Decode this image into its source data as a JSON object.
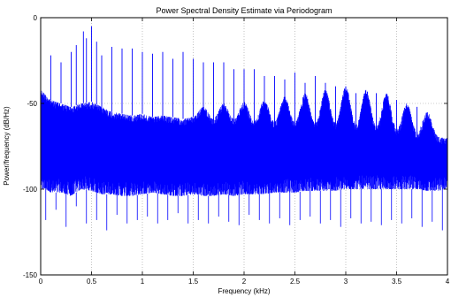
{
  "chart_data": {
    "type": "line",
    "title": "Power Spectral Density Estimate via Periodogram",
    "xlabel": "Frequency (kHz)",
    "ylabel": "Power/frequency (dB/Hz)",
    "xlim": [
      0,
      4
    ],
    "ylim": [
      -150,
      0
    ],
    "xticks": [
      "0",
      "0.5",
      "1",
      "1.5",
      "2",
      "2.5",
      "3",
      "3.5",
      "4"
    ],
    "yticks": [
      "-150",
      "-100",
      "-50",
      "0"
    ],
    "grid": true,
    "line_color": "#0000ff",
    "noise_band": {
      "x": [
        0.0,
        0.05,
        0.1,
        0.2,
        0.3,
        0.4,
        0.5,
        0.6,
        0.7,
        0.8,
        0.9,
        1.0,
        1.1,
        1.2,
        1.3,
        1.4,
        1.5,
        1.6,
        1.7,
        1.8,
        1.9,
        2.0,
        2.1,
        2.2,
        2.3,
        2.4,
        2.5,
        2.6,
        2.7,
        2.8,
        2.9,
        3.0,
        3.1,
        3.2,
        3.3,
        3.4,
        3.5,
        3.6,
        3.7,
        3.8,
        3.9,
        4.0
      ],
      "upper": [
        -42,
        -45,
        -48,
        -50,
        -52,
        -50,
        -49,
        -52,
        -55,
        -56,
        -57,
        -56,
        -58,
        -57,
        -58,
        -59,
        -58,
        -59,
        -60,
        -60,
        -61,
        -62,
        -62,
        -63,
        -63,
        -63,
        -64,
        -64,
        -65,
        -65,
        -65,
        -66,
        -66,
        -67,
        -67,
        -68,
        -68,
        -69,
        -69,
        -69,
        -70,
        -70
      ],
      "lower": [
        -100,
        -100,
        -102,
        -102,
        -104,
        -100,
        -101,
        -103,
        -103,
        -104,
        -104,
        -103,
        -102,
        -103,
        -104,
        -104,
        -103,
        -104,
        -104,
        -103,
        -104,
        -103,
        -103,
        -103,
        -102,
        -102,
        -102,
        -101,
        -101,
        -101,
        -101,
        -100,
        -100,
        -100,
        -100,
        -100,
        -100,
        -100,
        -100,
        -101,
        -101,
        -100
      ]
    },
    "peaks": {
      "x": [
        0.1,
        0.2,
        0.3,
        0.35,
        0.42,
        0.45,
        0.5,
        0.55,
        0.6,
        0.7,
        0.8,
        0.9,
        1.0,
        1.1,
        1.2,
        1.3,
        1.4,
        1.5,
        1.6,
        1.7,
        1.8,
        1.9,
        2.0,
        2.1,
        2.2,
        2.3,
        2.4,
        2.5,
        2.6,
        2.7,
        2.8,
        2.9,
        3.0,
        3.1,
        3.2,
        3.3,
        3.4,
        3.5,
        3.6,
        3.7,
        3.8
      ],
      "values": [
        -22,
        -26,
        -20,
        -16,
        -8,
        -12,
        -5,
        -14,
        -22,
        -17,
        -18,
        -18,
        -20,
        -21,
        -20,
        -24,
        -20,
        -24,
        -26,
        -26,
        -26,
        -30,
        -30,
        -30,
        -34,
        -34,
        -36,
        -32,
        -38,
        -34,
        -38,
        -40,
        -40,
        -44,
        -46,
        -44,
        -50,
        -48,
        -56,
        -52,
        -56
      ]
    },
    "harmonic_humps": {
      "x": [
        1.6,
        1.8,
        2.0,
        2.2,
        2.4,
        2.6,
        2.8,
        3.0,
        3.2,
        3.4,
        3.6,
        3.8
      ],
      "top": [
        -52,
        -50,
        -49,
        -48,
        -46,
        -44,
        -42,
        -40,
        -42,
        -44,
        -50,
        -55
      ]
    },
    "dips": {
      "x": [
        0.05,
        0.15,
        0.25,
        0.35,
        0.45,
        0.55,
        0.65,
        0.75,
        0.85,
        0.95,
        1.05,
        1.15,
        1.25,
        1.35,
        1.45,
        1.55,
        1.65,
        1.75,
        1.85,
        1.95,
        2.05,
        2.15,
        2.25,
        2.35,
        2.45,
        2.55,
        2.65,
        2.75,
        2.85,
        2.95,
        3.05,
        3.15,
        3.25,
        3.35,
        3.45,
        3.55,
        3.65,
        3.75,
        3.85,
        3.95
      ],
      "values": [
        -118,
        -112,
        -122,
        -110,
        -120,
        -118,
        -124,
        -115,
        -120,
        -118,
        -116,
        -120,
        -118,
        -114,
        -120,
        -118,
        -120,
        -116,
        -119,
        -121,
        -115,
        -118,
        -120,
        -117,
        -121,
        -118,
        -116,
        -120,
        -118,
        -122,
        -117,
        -120,
        -119,
        -121,
        -118,
        -120,
        -117,
        -122,
        -119,
        -124
      ]
    }
  }
}
